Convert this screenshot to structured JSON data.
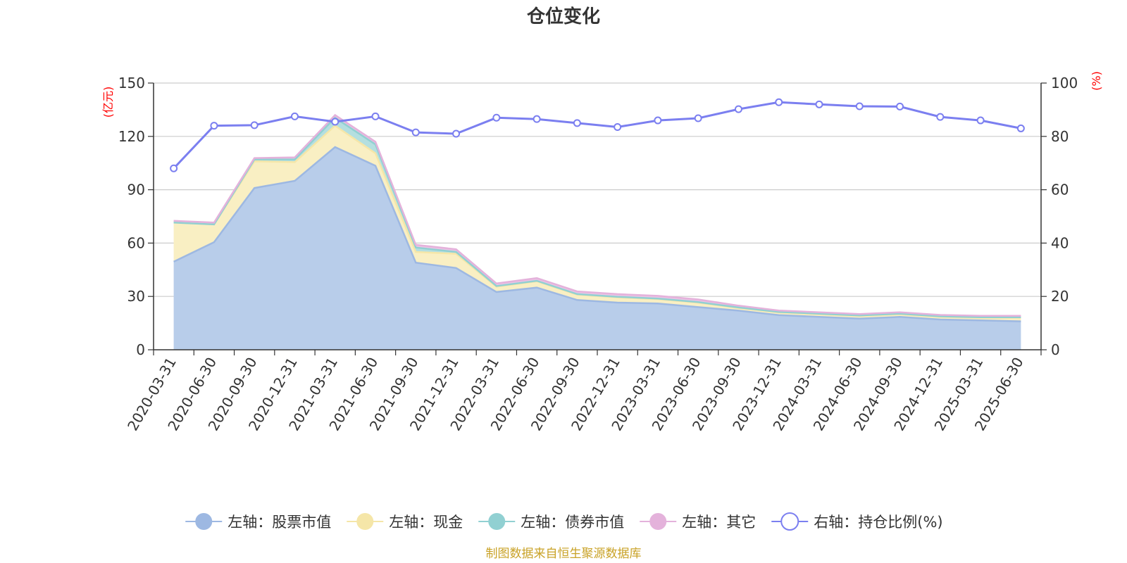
{
  "chart_data": {
    "type": "area",
    "title": "仓位变化",
    "left_unit": "(亿元)",
    "right_unit": "(%)",
    "categories": [
      "2020-03-31",
      "2020-06-30",
      "2020-09-30",
      "2020-12-31",
      "2021-03-31",
      "2021-06-30",
      "2021-09-30",
      "2021-12-31",
      "2022-03-31",
      "2022-06-30",
      "2022-09-30",
      "2022-12-31",
      "2023-03-31",
      "2023-06-30",
      "2023-09-30",
      "2023-12-31",
      "2024-03-31",
      "2024-06-30",
      "2024-09-30",
      "2024-12-31",
      "2025-03-31",
      "2025-06-30"
    ],
    "left_axis": {
      "min": 0,
      "max": 150,
      "ticks": [
        "0",
        "30",
        "60",
        "90",
        "120",
        "150"
      ]
    },
    "right_axis": {
      "min": 0,
      "max": 100,
      "ticks": [
        "0",
        "20",
        "40",
        "60",
        "80",
        "100"
      ]
    },
    "series": [
      {
        "name": "左轴：股票市值",
        "axis": "left",
        "stacked": true,
        "line_color": "#9db8e2",
        "fill_color": "#b8cdea",
        "values": [
          49.5,
          60.5,
          91.0,
          95.0,
          114.0,
          103.5,
          49.0,
          46.0,
          32.5,
          35.0,
          28.0,
          26.5,
          26.0,
          24.0,
          22.0,
          19.5,
          18.5,
          17.5,
          18.5,
          17.0,
          16.5,
          16.0
        ]
      },
      {
        "name": "左轴：现金",
        "axis": "left",
        "stacked": true,
        "line_color": "#f5e6a8",
        "fill_color": "#f9efc3",
        "values": [
          22.0,
          10.0,
          15.0,
          10.5,
          12.0,
          7.0,
          6.0,
          8.0,
          3.0,
          3.5,
          3.0,
          3.0,
          2.5,
          2.5,
          1.5,
          1.5,
          1.5,
          1.5,
          1.5,
          1.5,
          1.5,
          2.0
        ]
      },
      {
        "name": "左轴：债券市值",
        "axis": "left",
        "stacked": true,
        "line_color": "#91d0d2",
        "fill_color": "#b4dfe0",
        "values": [
          0.0,
          0.0,
          1.0,
          1.5,
          4.5,
          5.0,
          2.5,
          1.0,
          0.3,
          0.3,
          0.3,
          0.3,
          0.3,
          0.3,
          0.3,
          0.3,
          0.3,
          0.3,
          0.3,
          0.3,
          0.3,
          0.3
        ]
      },
      {
        "name": "左轴：其它",
        "axis": "left",
        "stacked": true,
        "line_color": "#e4b2db",
        "fill_color": "#ecc6e6",
        "values": [
          1.0,
          1.0,
          0.8,
          1.2,
          1.5,
          1.5,
          1.5,
          1.5,
          1.5,
          1.5,
          1.5,
          1.5,
          1.5,
          1.5,
          1.0,
          0.8,
          0.8,
          0.8,
          0.8,
          0.8,
          0.8,
          0.8
        ]
      },
      {
        "name": "右轴：持仓比例(%)",
        "axis": "right",
        "type": "line",
        "line_color": "#7b7ff0",
        "values": [
          68.0,
          84.0,
          84.2,
          87.5,
          85.5,
          87.5,
          81.5,
          81.0,
          87.0,
          86.5,
          85.0,
          83.5,
          86.0,
          86.8,
          90.2,
          92.8,
          92.0,
          91.3,
          91.2,
          87.3,
          86.0,
          83.0
        ]
      }
    ],
    "legend_position": "bottom",
    "grid": true,
    "source_note": "制图数据来自恒生聚源数据库"
  }
}
